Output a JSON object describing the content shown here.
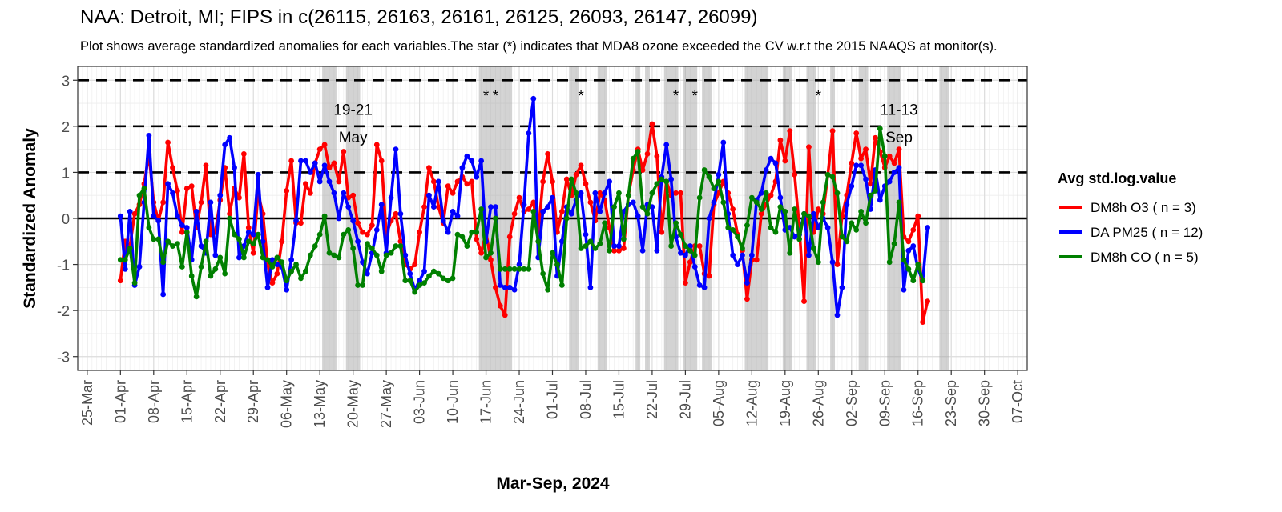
{
  "title": "NAA: Detroit, MI; FIPS in c(26115, 26163, 26161, 26125, 26093, 26147, 26099)",
  "subtitle": "Plot shows average standardized anomalies for each variables.The star (*) indicates that MDA8 ozone exceeded the CV w.r.t the 2015 NAAQS at monitor(s).",
  "chart_data": {
    "type": "line",
    "xlabel": "Mar-Sep, 2024",
    "ylabel": "Standardized Anomaly",
    "x_range": [
      "2024-03-23",
      "2024-10-09"
    ],
    "ylim": [
      -3.3,
      3.3
    ],
    "x_ticks": [
      {
        "date": "2024-03-25",
        "label": "25-Mar"
      },
      {
        "date": "2024-04-01",
        "label": "01-Apr"
      },
      {
        "date": "2024-04-08",
        "label": "08-Apr"
      },
      {
        "date": "2024-04-15",
        "label": "15-Apr"
      },
      {
        "date": "2024-04-22",
        "label": "22-Apr"
      },
      {
        "date": "2024-04-29",
        "label": "29-Apr"
      },
      {
        "date": "2024-05-06",
        "label": "06-May"
      },
      {
        "date": "2024-05-13",
        "label": "13-May"
      },
      {
        "date": "2024-05-20",
        "label": "20-May"
      },
      {
        "date": "2024-05-27",
        "label": "27-May"
      },
      {
        "date": "2024-06-03",
        "label": "03-Jun"
      },
      {
        "date": "2024-06-10",
        "label": "10-Jun"
      },
      {
        "date": "2024-06-17",
        "label": "17-Jun"
      },
      {
        "date": "2024-06-24",
        "label": "24-Jun"
      },
      {
        "date": "2024-07-01",
        "label": "01-Jul"
      },
      {
        "date": "2024-07-08",
        "label": "08-Jul"
      },
      {
        "date": "2024-07-15",
        "label": "15-Jul"
      },
      {
        "date": "2024-07-22",
        "label": "22-Jul"
      },
      {
        "date": "2024-07-29",
        "label": "29-Jul"
      },
      {
        "date": "2024-08-05",
        "label": "05-Aug"
      },
      {
        "date": "2024-08-12",
        "label": "12-Aug"
      },
      {
        "date": "2024-08-19",
        "label": "19-Aug"
      },
      {
        "date": "2024-08-26",
        "label": "26-Aug"
      },
      {
        "date": "2024-09-02",
        "label": "02-Sep"
      },
      {
        "date": "2024-09-09",
        "label": "09-Sep"
      },
      {
        "date": "2024-09-16",
        "label": "16-Sep"
      },
      {
        "date": "2024-09-23",
        "label": "23-Sep"
      },
      {
        "date": "2024-09-30",
        "label": "30-Sep"
      },
      {
        "date": "2024-10-07",
        "label": "07-Oct"
      }
    ],
    "y_ticks": [
      -3,
      -2,
      -1,
      0,
      1,
      2,
      3
    ],
    "reference_lines": {
      "dashed": [
        1,
        2,
        3
      ],
      "solid": [
        0
      ]
    },
    "grid": true,
    "legend": {
      "title": "Avg std.log.value",
      "position": "right"
    },
    "shaded_periods": [
      [
        "2024-05-14",
        "2024-05-16"
      ],
      [
        "2024-05-19",
        "2024-05-21"
      ],
      [
        "2024-06-16",
        "2024-06-17"
      ],
      [
        "2024-06-18",
        "2024-06-20"
      ],
      [
        "2024-06-21",
        "2024-06-22"
      ],
      [
        "2024-07-05",
        "2024-07-06"
      ],
      [
        "2024-07-11",
        "2024-07-12"
      ],
      [
        "2024-07-19",
        "2024-07-19"
      ],
      [
        "2024-07-21",
        "2024-07-21"
      ],
      [
        "2024-07-25",
        "2024-07-27"
      ],
      [
        "2024-07-29",
        "2024-07-31"
      ],
      [
        "2024-08-02",
        "2024-08-03"
      ],
      [
        "2024-08-11",
        "2024-08-15"
      ],
      [
        "2024-08-19",
        "2024-08-20"
      ],
      [
        "2024-08-24",
        "2024-08-25"
      ],
      [
        "2024-08-29",
        "2024-08-29"
      ],
      [
        "2024-09-04",
        "2024-09-05"
      ],
      [
        "2024-09-10",
        "2024-09-12"
      ],
      [
        "2024-09-21",
        "2024-09-22"
      ]
    ],
    "annotations": [
      {
        "date": "2024-05-20",
        "y": 2.25,
        "text": "19-21"
      },
      {
        "date": "2024-05-20",
        "y": 1.65,
        "text": "May"
      },
      {
        "date": "2024-09-12",
        "y": 2.25,
        "text": "11-13"
      },
      {
        "date": "2024-09-12",
        "y": 1.65,
        "text": "Sep"
      }
    ],
    "star_markers": {
      "y": 2.55,
      "text": "*",
      "dates": [
        "2024-06-17",
        "2024-06-19",
        "2024-07-07",
        "2024-07-27",
        "2024-07-31",
        "2024-08-26"
      ]
    },
    "start_date": "2024-04-01",
    "series": [
      {
        "name": "DM8h O3 ( n = 3)",
        "color": "#ff0000",
        "values": [
          -1.35,
          -0.5,
          -0.6,
          0.1,
          0.3,
          0.75,
          1.4,
          0.35,
          -0.05,
          0.35,
          1.65,
          1.1,
          0.6,
          -0.3,
          0.65,
          0.7,
          -0.2,
          0.35,
          1.15,
          -0.35,
          -0.3,
          0.4,
          1.1,
          0.1,
          0.65,
          0.45,
          1.4,
          -0.2,
          -0.75,
          0.55,
          0.1,
          -1.0,
          -1.4,
          -1.2,
          -0.5,
          0.6,
          1.25,
          -0.1,
          -0.1,
          0.75,
          0.55,
          1.2,
          1.5,
          1.6,
          1.1,
          1.2,
          0.8,
          1.45,
          0.45,
          0.5,
          -0.1,
          -0.3,
          -0.35,
          -0.15,
          1.6,
          1.25,
          -0.35,
          -0.05,
          0.1,
          -0.5,
          -1.0,
          -1.1,
          -1.0,
          -0.3,
          0.25,
          1.1,
          0.8,
          0.25,
          -0.1,
          0.7,
          0.55,
          0.8,
          0.9,
          0.75,
          0.8,
          -0.45,
          -0.75,
          -0.3,
          -0.9,
          -1.5,
          -1.9,
          -2.1,
          -0.4,
          0.1,
          0.45,
          0.15,
          0.2,
          0.35,
          -0.3,
          0.8,
          1.4,
          0.8,
          -0.3,
          0.15,
          0.85,
          0.5,
          0.95,
          1.15,
          0.75,
          0.35,
          -0.05,
          0.55,
          0.4,
          -0.2,
          -0.7,
          -0.7,
          -0.65,
          0.5,
          1.05,
          1.5,
          1.05,
          1.4,
          2.05,
          1.35,
          -0.3,
          0.8,
          0.5,
          0.55,
          0.55,
          -1.4,
          -0.95,
          -0.6,
          -0.6,
          -1.2,
          -1.25,
          0.3,
          0.55,
          0.8,
          0.55,
          0.2,
          -0.35,
          -0.7,
          -1.75,
          -0.9,
          -0.9,
          0.1,
          0.3,
          0.5,
          0.8,
          1.7,
          1.25,
          1.9,
          0.95,
          -0.2,
          -1.8,
          1.55,
          -0.3,
          0.2,
          0.1,
          0.95,
          1.9,
          -1.0,
          0.05,
          0.5,
          1.2,
          1.85,
          1.3,
          1.5,
          0.75,
          1.75,
          1.45,
          1.1,
          1.35,
          1.2,
          1.5,
          -0.4,
          -0.5,
          -0.25,
          0.05,
          -2.25,
          -1.8
        ]
      },
      {
        "name": "DA PM25 ( n = 12)",
        "color": "#0000ff",
        "values": [
          0.05,
          -1.1,
          0.15,
          -1.45,
          -1.05,
          0.35,
          1.8,
          0.05,
          -0.05,
          -1.65,
          0.75,
          0.55,
          0.05,
          -0.15,
          -0.2,
          -0.9,
          0.15,
          -0.6,
          -0.75,
          0.35,
          -0.8,
          0.5,
          1.6,
          1.75,
          1.1,
          -0.85,
          -0.6,
          -0.3,
          -0.35,
          0.95,
          -0.5,
          -1.5,
          -0.9,
          -1.0,
          -1.05,
          -1.55,
          -0.9,
          -0.05,
          1.25,
          1.25,
          1.0,
          1.2,
          0.8,
          1.15,
          0.8,
          0.55,
          0.0,
          0.55,
          0.25,
          -0.05,
          -0.5,
          -0.95,
          -1.2,
          -0.75,
          -0.25,
          0.3,
          -0.75,
          0.45,
          1.5,
          0.1,
          -0.8,
          -1.2,
          -1.55,
          -1.35,
          -1.15,
          0.5,
          0.25,
          0.8,
          -0.05,
          -0.3,
          0.15,
          0.05,
          1.1,
          1.35,
          1.25,
          0.9,
          1.25,
          -0.5,
          0.25,
          0.25,
          -1.45,
          -1.5,
          -1.5,
          -1.55,
          -1.0,
          0.3,
          1.85,
          2.6,
          -0.85,
          0.15,
          0.25,
          0.45,
          -1.25,
          -0.5,
          0.25,
          0.1,
          0.4,
          0.55,
          -0.35,
          -1.5,
          0.55,
          0.15,
          0.55,
          0.8,
          -0.6,
          -0.6,
          0.15,
          0.3,
          0.35,
          0.05,
          -0.7,
          0.3,
          0.25,
          -0.7,
          0.9,
          1.6,
          0.85,
          -0.4,
          -0.75,
          -0.8,
          -0.6,
          -1.05,
          -1.45,
          -1.5,
          0.0,
          0.35,
          0.95,
          1.65,
          0.1,
          -0.8,
          -1.0,
          -0.8,
          -1.4,
          -0.8,
          0.4,
          0.55,
          1.05,
          1.3,
          1.2,
          0.45,
          -0.25,
          -0.2,
          -0.4,
          -0.35,
          0.1,
          -0.8,
          0.1,
          -0.2,
          0.0,
          -0.2,
          -0.95,
          -2.1,
          -1.5,
          0.3,
          0.7,
          1.15,
          1.15,
          0.85,
          0.2,
          1.05,
          0.4,
          0.7,
          0.8,
          1.0,
          1.1,
          -1.55,
          -0.7,
          -0.6,
          -1.1,
          -1.35,
          -0.2
        ]
      },
      {
        "name": "DM8h CO ( n = 5)",
        "color": "#008000",
        "values": [
          -0.9,
          -0.9,
          -0.65,
          -1.4,
          0.5,
          0.65,
          -0.2,
          -0.45,
          -0.45,
          -0.95,
          -0.5,
          -0.6,
          -0.55,
          -1.05,
          -0.3,
          -1.25,
          -1.7,
          -1.05,
          -0.5,
          -1.25,
          -1.1,
          -0.85,
          -1.2,
          0.0,
          -0.35,
          -0.45,
          -0.85,
          -0.5,
          -0.55,
          -0.35,
          -0.85,
          -0.9,
          -1.05,
          -0.85,
          -0.95,
          -1.35,
          -1.15,
          -1.0,
          -1.3,
          -1.15,
          -0.8,
          -0.6,
          -0.35,
          0.05,
          -0.75,
          -0.8,
          -0.85,
          -0.35,
          -0.25,
          -0.65,
          -1.45,
          -1.45,
          -0.55,
          -0.65,
          -0.8,
          -1.15,
          -0.8,
          -0.75,
          -0.6,
          -0.6,
          -1.35,
          -1.35,
          -1.6,
          -1.45,
          -1.4,
          -1.25,
          -1.15,
          -1.2,
          -1.3,
          -1.35,
          -1.3,
          -0.35,
          -0.4,
          -0.6,
          -0.3,
          -0.3,
          0.2,
          -0.85,
          -0.75,
          0.0,
          -1.1,
          -1.1,
          -1.1,
          -1.1,
          -1.1,
          -1.1,
          -1.1,
          0.15,
          -0.5,
          -1.2,
          -1.55,
          -0.75,
          -1.0,
          -1.45,
          0.0,
          0.85,
          0.55,
          -0.65,
          -0.6,
          -0.5,
          -0.65,
          -0.55,
          -0.1,
          -0.7,
          0.25,
          0.55,
          -0.45,
          0.5,
          1.3,
          1.45,
          0.25,
          0.1,
          0.55,
          0.75,
          0.85,
          0.8,
          -0.6,
          -0.1,
          -0.35,
          -0.6,
          -0.7,
          -0.8,
          0.45,
          1.05,
          0.9,
          0.65,
          0.8,
          0.35,
          -0.2,
          -0.25,
          -0.4,
          -0.65,
          -0.15,
          0.45,
          0.35,
          0.2,
          0.55,
          -0.2,
          -0.3,
          0.25,
          0.15,
          -0.75,
          0.2,
          -0.45,
          0.1,
          0.05,
          -0.65,
          -0.95,
          0.35,
          0.95,
          0.9,
          0.55,
          -0.4,
          -0.5,
          -0.1,
          -0.25,
          0.15,
          -0.1,
          0.5,
          0.6,
          1.95,
          1.35,
          -0.95,
          -0.55,
          0.35,
          -0.9,
          -1.1,
          -1.35,
          -1.0,
          -1.35
        ]
      }
    ]
  }
}
